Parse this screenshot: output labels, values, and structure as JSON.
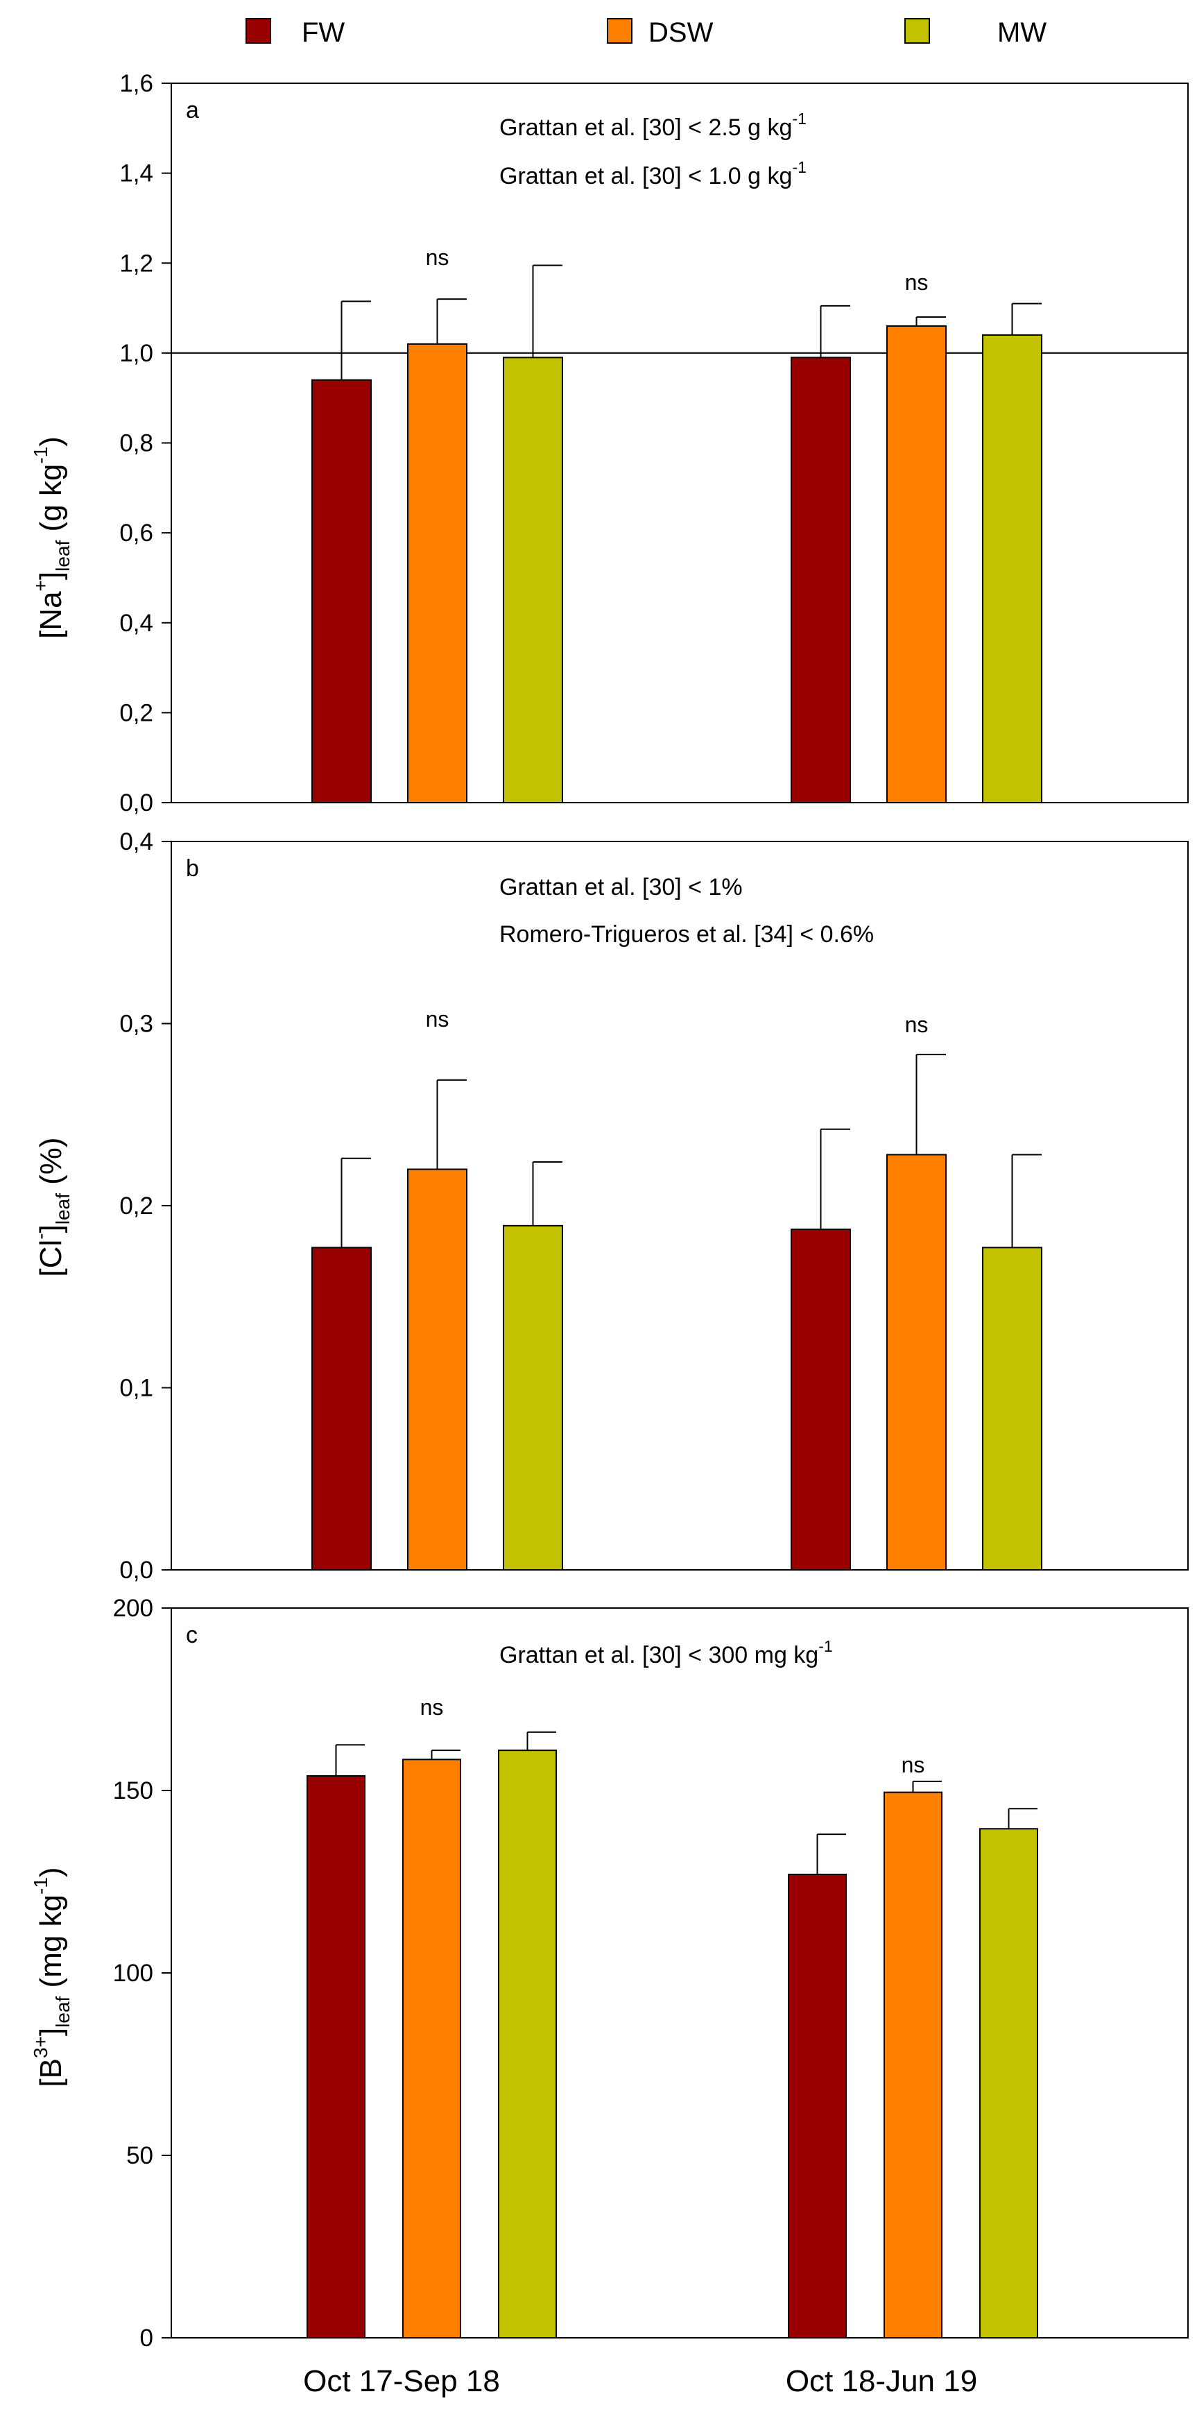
{
  "legend": [
    {
      "name": "FW",
      "color": "#990000"
    },
    {
      "name": "DSW",
      "color": "#ff8000"
    },
    {
      "name": "MW",
      "color": "#c2c200"
    }
  ],
  "chart_data": [
    {
      "type": "bar",
      "panel_label": "a",
      "categories": [
        "Oct 17-Sep 18",
        "Oct 18-Jun 19"
      ],
      "series": [
        {
          "name": "FW",
          "values": [
            0.94,
            0.99
          ],
          "errors": [
            0.175,
            0.115
          ]
        },
        {
          "name": "DSW",
          "values": [
            1.02,
            1.06
          ],
          "errors": [
            0.1,
            0.02
          ]
        },
        {
          "name": "MW",
          "values": [
            0.99,
            1.04
          ],
          "errors": [
            0.205,
            0.07
          ]
        }
      ],
      "ylabel": {
        "main": "[Na",
        "sup": "+",
        "mid": "]",
        "sub": "leaf",
        "unit_pre": " (g kg",
        "unit_sup": "-1",
        "unit_post": ")"
      },
      "ylim": [
        0,
        1.6
      ],
      "yticks": [
        "0,0",
        "0,2",
        "0,4",
        "0,6",
        "0,8",
        "1,0",
        "1,2",
        "1,4",
        "1,6"
      ],
      "reference_lines": [
        {
          "y": 1.0
        }
      ],
      "annotations": [
        {
          "text": "Grattan et al. [30] < 2.5 g kg",
          "sup": "-1"
        },
        {
          "text": "Grattan et al. [30] < 1.0 g kg",
          "sup": "-1"
        }
      ],
      "significance": [
        "ns",
        "ns"
      ]
    },
    {
      "type": "bar",
      "panel_label": "b",
      "categories": [
        "Oct 17-Sep 18",
        "Oct 18-Jun 19"
      ],
      "series": [
        {
          "name": "FW",
          "values": [
            0.177,
            0.187
          ],
          "errors": [
            0.049,
            0.055
          ]
        },
        {
          "name": "DSW",
          "values": [
            0.22,
            0.228
          ],
          "errors": [
            0.049,
            0.055
          ]
        },
        {
          "name": "MW",
          "values": [
            0.189,
            0.177
          ],
          "errors": [
            0.035,
            0.051
          ]
        }
      ],
      "ylabel": {
        "main": "[Cl",
        "sup": "-",
        "mid": "]",
        "sub": "leaf",
        "unit_pre": " (%)",
        "unit_sup": "",
        "unit_post": ""
      },
      "ylim": [
        0,
        0.4
      ],
      "yticks": [
        "0,0",
        "0,1",
        "0,2",
        "0,3",
        "0,4"
      ],
      "annotations": [
        {
          "text": "Grattan et al. [30] < 1%",
          "sup": ""
        },
        {
          "text": "Romero-Trigueros et al. [34] < 0.6%",
          "sup": ""
        }
      ],
      "significance": [
        "ns",
        "ns"
      ]
    },
    {
      "type": "bar",
      "panel_label": "c",
      "categories": [
        "Oct 17-Sep 18",
        "Oct 18-Jun 19"
      ],
      "series": [
        {
          "name": "FW",
          "values": [
            154,
            127
          ],
          "errors": [
            8.5,
            11
          ]
        },
        {
          "name": "DSW",
          "values": [
            158.5,
            149.5
          ],
          "errors": [
            2.5,
            3
          ]
        },
        {
          "name": "MW",
          "values": [
            161,
            139.5
          ],
          "errors": [
            5,
            5.5
          ]
        }
      ],
      "ylabel": {
        "main": "[B",
        "sup": "3+",
        "mid": "]",
        "sub": "leaf",
        "unit_pre": " (mg kg",
        "unit_sup": "-1",
        "unit_post": ")"
      },
      "ylim": [
        0,
        200
      ],
      "yticks": [
        "0",
        "50",
        "100",
        "150",
        "200"
      ],
      "annotations": [
        {
          "text": "Grattan et al. [30] < 300 mg kg",
          "sup": "-1"
        }
      ],
      "significance": [
        "ns",
        "ns"
      ]
    }
  ]
}
